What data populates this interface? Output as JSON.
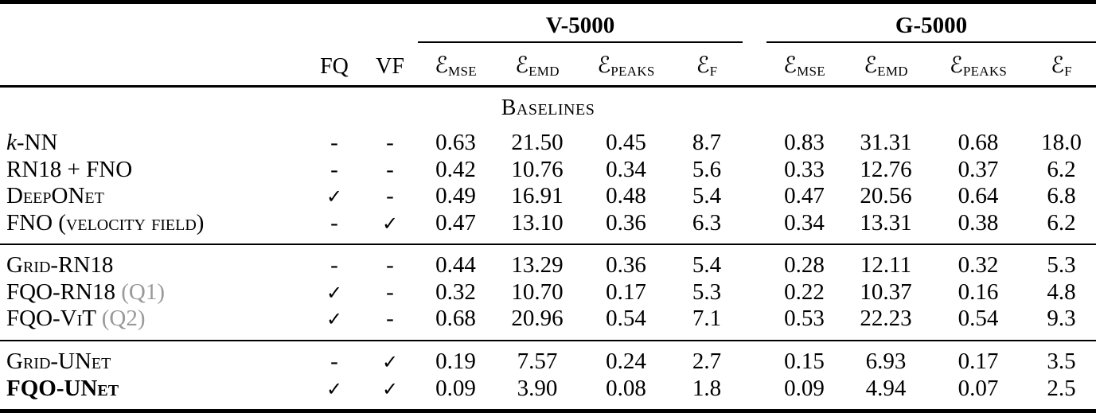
{
  "colors": {
    "text": "#000000",
    "gray_label": "#999999",
    "rule": "#000000",
    "background": "#ffffff"
  },
  "header": {
    "fq": "FQ",
    "vf": "VF",
    "groups": [
      {
        "label": "V-5000"
      },
      {
        "label": "G-5000"
      }
    ],
    "metrics": [
      {
        "symbol": "ℰ",
        "subscript": "MSE"
      },
      {
        "symbol": "ℰ",
        "subscript": "EMD"
      },
      {
        "symbol": "ℰ",
        "subscript": "PEAKS"
      },
      {
        "symbol": "ℰ",
        "subscript": "F"
      }
    ]
  },
  "check_glyph": "✓",
  "dash_glyph": "-",
  "sections": [
    {
      "title": "Baselines",
      "rows": [
        {
          "label_parts": [
            {
              "text": "k",
              "style": "italic"
            },
            {
              "text": "-NN",
              "style": "plain"
            }
          ],
          "fq": "-",
          "vf": "-",
          "v5000": [
            "0.63",
            "21.50",
            "0.45",
            "8.7"
          ],
          "g5000": [
            "0.83",
            "31.31",
            "0.68",
            "18.0"
          ]
        },
        {
          "label_parts": [
            {
              "text": "RN18 + FNO",
              "style": "plain"
            }
          ],
          "fq": "-",
          "vf": "-",
          "v5000": [
            "0.42",
            "10.76",
            "0.34",
            "5.6"
          ],
          "g5000": [
            "0.33",
            "12.76",
            "0.37",
            "6.2"
          ]
        },
        {
          "label_parts": [
            {
              "text": "DeepONet",
              "style": "smallcaps"
            }
          ],
          "fq": "✓",
          "vf": "-",
          "v5000": [
            "0.49",
            "16.91",
            "0.48",
            "5.4"
          ],
          "g5000": [
            "0.47",
            "20.56",
            "0.64",
            "6.8"
          ]
        },
        {
          "label_parts": [
            {
              "text": "FNO (velocity field)",
              "style": "smallcaps"
            }
          ],
          "fq": "-",
          "vf": "✓",
          "v5000": [
            "0.47",
            "13.10",
            "0.36",
            "6.3"
          ],
          "g5000": [
            "0.34",
            "13.31",
            "0.38",
            "6.2"
          ]
        }
      ]
    },
    {
      "title": null,
      "rows": [
        {
          "label_parts": [
            {
              "text": "Grid-RN18",
              "style": "smallcaps"
            }
          ],
          "fq": "-",
          "vf": "-",
          "v5000": [
            "0.44",
            "13.29",
            "0.36",
            "5.4"
          ],
          "g5000": [
            "0.28",
            "12.11",
            "0.32",
            "5.3"
          ]
        },
        {
          "label_parts": [
            {
              "text": "FQO-RN18 ",
              "style": "smallcaps"
            },
            {
              "text": "(Q1)",
              "style": "gray"
            }
          ],
          "fq": "✓",
          "vf": "-",
          "v5000": [
            "0.32",
            "10.70",
            "0.17",
            "5.3"
          ],
          "g5000": [
            "0.22",
            "10.37",
            "0.16",
            "4.8"
          ]
        },
        {
          "label_parts": [
            {
              "text": "FQO-ViT ",
              "style": "smallcaps"
            },
            {
              "text": "(Q2)",
              "style": "gray"
            }
          ],
          "fq": "✓",
          "vf": "-",
          "v5000": [
            "0.68",
            "20.96",
            "0.54",
            "7.1"
          ],
          "g5000": [
            "0.53",
            "22.23",
            "0.54",
            "9.3"
          ]
        }
      ]
    },
    {
      "title": null,
      "rows": [
        {
          "label_parts": [
            {
              "text": "Grid-UNet",
              "style": "smallcaps"
            }
          ],
          "fq": "-",
          "vf": "✓",
          "v5000": [
            "0.19",
            "7.57",
            "0.24",
            "2.7"
          ],
          "g5000": [
            "0.15",
            "6.93",
            "0.17",
            "3.5"
          ]
        },
        {
          "label_parts": [
            {
              "text": "FQO-UNet",
              "style": "bold-smallcaps"
            }
          ],
          "fq": "✓",
          "vf": "✓",
          "v5000": [
            "0.09",
            "3.90",
            "0.08",
            "1.8"
          ],
          "g5000": [
            "0.09",
            "4.94",
            "0.07",
            "2.5"
          ]
        }
      ]
    }
  ]
}
